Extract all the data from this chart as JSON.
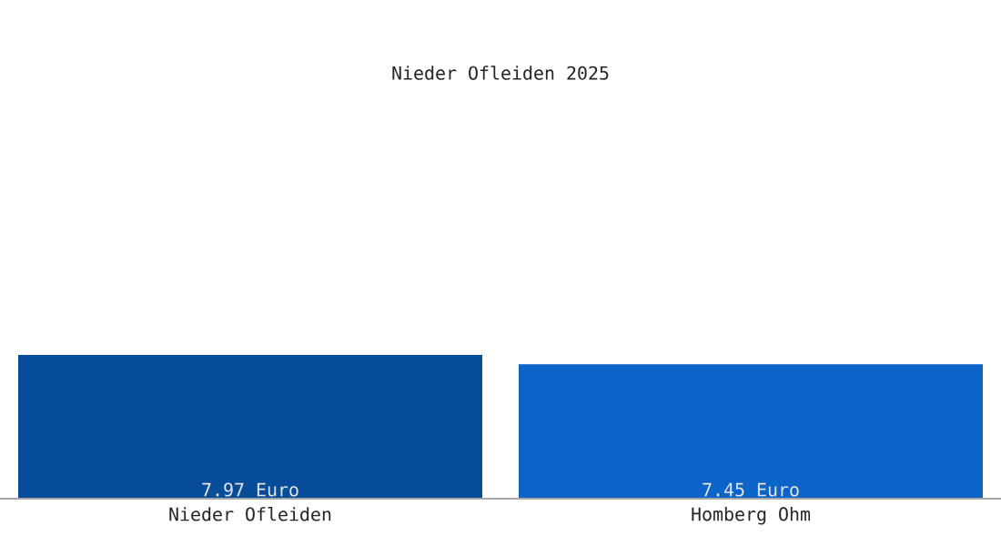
{
  "chart_data": {
    "type": "bar",
    "title": "Nieder Ofleiden 2025",
    "categories": [
      "Nieder Ofleiden",
      "Homberg Ohm"
    ],
    "values": [
      7.97,
      7.45
    ],
    "colors": [
      "#084d9a",
      "#0c64c8"
    ],
    "value_labels": [
      "7.97 Euro",
      "7.45 Euro"
    ]
  }
}
